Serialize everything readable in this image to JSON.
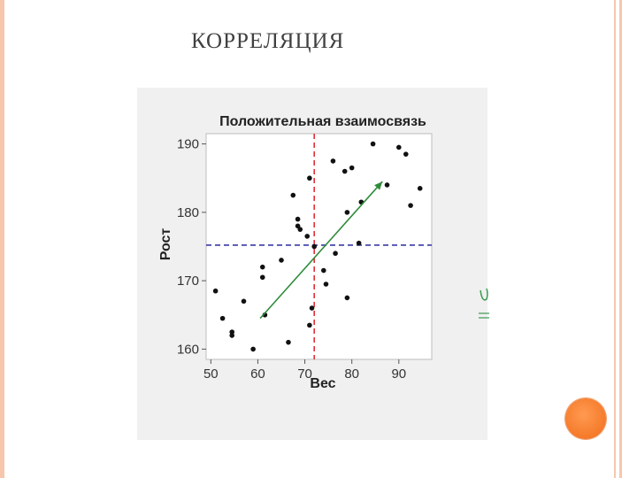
{
  "slide": {
    "title": "КОРРЕЛЯЦИЯ"
  },
  "colors": {
    "frame": "#f6c7ad",
    "accent_circle": "#f57a2a",
    "trend_arrow": "#2e8b3a",
    "vline": "#e0303a",
    "hline": "#3a3aa8",
    "points": "#111111"
  },
  "chart_data": {
    "type": "scatter",
    "title": "Положительная взаимосвязь",
    "xlabel": "Вес",
    "ylabel": "Рост",
    "xlim": [
      49,
      97
    ],
    "ylim": [
      158.5,
      191.5
    ],
    "xticks": [
      50,
      60,
      70,
      80,
      90
    ],
    "yticks": [
      160,
      170,
      180,
      190
    ],
    "grid": false,
    "legend": "none",
    "reference_lines": {
      "vertical_x": 72,
      "horizontal_y": 175.2
    },
    "trend_arrow": {
      "from": [
        60.5,
        164.5
      ],
      "to": [
        86.5,
        184.5
      ]
    },
    "points": [
      {
        "x": 51,
        "y": 168.5
      },
      {
        "x": 52.5,
        "y": 164.5
      },
      {
        "x": 54.5,
        "y": 162.5
      },
      {
        "x": 54.5,
        "y": 162
      },
      {
        "x": 57,
        "y": 167
      },
      {
        "x": 59,
        "y": 160
      },
      {
        "x": 61,
        "y": 172
      },
      {
        "x": 61,
        "y": 170.5
      },
      {
        "x": 61.5,
        "y": 165
      },
      {
        "x": 65,
        "y": 173
      },
      {
        "x": 66.5,
        "y": 161
      },
      {
        "x": 67.5,
        "y": 182.5
      },
      {
        "x": 68.5,
        "y": 179
      },
      {
        "x": 68.5,
        "y": 178
      },
      {
        "x": 69,
        "y": 177.5
      },
      {
        "x": 70.5,
        "y": 176.5
      },
      {
        "x": 71,
        "y": 185
      },
      {
        "x": 71,
        "y": 163.5
      },
      {
        "x": 71.5,
        "y": 166
      },
      {
        "x": 72,
        "y": 175
      },
      {
        "x": 74,
        "y": 171.5
      },
      {
        "x": 74.5,
        "y": 169.5
      },
      {
        "x": 76,
        "y": 187.5
      },
      {
        "x": 76.5,
        "y": 174
      },
      {
        "x": 78.5,
        "y": 186
      },
      {
        "x": 79,
        "y": 180
      },
      {
        "x": 79,
        "y": 167.5
      },
      {
        "x": 80,
        "y": 186.5
      },
      {
        "x": 81.5,
        "y": 175.5
      },
      {
        "x": 82,
        "y": 181.5
      },
      {
        "x": 84.5,
        "y": 190
      },
      {
        "x": 87.5,
        "y": 184
      },
      {
        "x": 90,
        "y": 189.5
      },
      {
        "x": 91.5,
        "y": 188.5
      },
      {
        "x": 92.5,
        "y": 181
      },
      {
        "x": 94.5,
        "y": 183.5
      }
    ]
  }
}
